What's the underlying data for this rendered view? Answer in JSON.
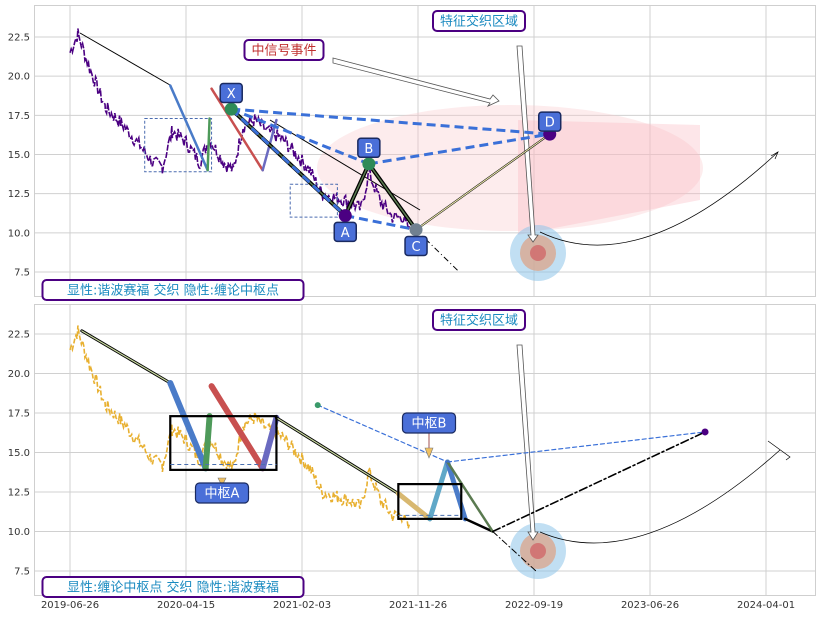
{
  "chart_data": [
    {
      "type": "line",
      "panel": "top",
      "title": "",
      "xlabel": "",
      "ylabel": "",
      "ylim": [
        6,
        24.5
      ],
      "x_ticks": [],
      "y_ticks": [
        "7.5",
        "10.0",
        "12.5",
        "15.0",
        "17.5",
        "20.0",
        "22.5"
      ],
      "y_tick_values": [
        7.5,
        10.0,
        12.5,
        15.0,
        17.5,
        20.0,
        22.5
      ],
      "grid": true,
      "price_color": "#4b0082",
      "price_anchors": [
        [
          0,
          21.5
        ],
        [
          20,
          22.7
        ],
        [
          50,
          20.5
        ],
        [
          90,
          18.0
        ],
        [
          130,
          17.0
        ],
        [
          180,
          15.5
        ],
        [
          210,
          14.5
        ],
        [
          235,
          14.2
        ],
        [
          260,
          16.5
        ],
        [
          295,
          15.8
        ],
        [
          330,
          14.5
        ],
        [
          355,
          16.0
        ],
        [
          390,
          14.5
        ],
        [
          415,
          14.0
        ],
        [
          440,
          16.8
        ],
        [
          470,
          17.2
        ],
        [
          500,
          16.5
        ],
        [
          540,
          16.0
        ],
        [
          575,
          15.0
        ],
        [
          610,
          14.0
        ],
        [
          640,
          12.5
        ],
        [
          680,
          12.2
        ],
        [
          710,
          12.0
        ],
        [
          740,
          11.5
        ],
        [
          760,
          13.8
        ],
        [
          790,
          12.0
        ],
        [
          820,
          11.0
        ],
        [
          845,
          11.0
        ],
        [
          865,
          10.0
        ]
      ],
      "zhongshu_boxes": [
        [
          190,
          13.9,
          360,
          17.3
        ],
        [
          560,
          11.0,
          680,
          13.1
        ]
      ],
      "harmonic_points": [
        {
          "label": "X",
          "x": 410,
          "y": 17.9
        },
        {
          "label": "A",
          "x": 700,
          "y": 11.1
        },
        {
          "label": "B",
          "x": 760,
          "y": 14.4
        },
        {
          "label": "C",
          "x": 880,
          "y": 10.2
        },
        {
          "label": "D",
          "x": 1220,
          "y": 16.3
        }
      ],
      "annotations": [
        "特征交织区域",
        "中信号事件",
        "显性:谐波赛福 交织 隐性:缠论中枢点"
      ]
    },
    {
      "type": "line",
      "panel": "bottom",
      "title": "",
      "xlabel": "",
      "ylabel": "",
      "ylim": [
        6,
        24.5
      ],
      "x_ticks": [
        "2019-06-26",
        "2020-04-15",
        "2021-02-03",
        "2021-11-26",
        "2022-09-19",
        "2023-06-26",
        "2024-04-01"
      ],
      "x_tick_values": [
        0,
        295,
        590,
        885,
        1180,
        1475,
        1770
      ],
      "y_ticks": [
        "7.5",
        "10.0",
        "12.5",
        "15.0",
        "17.5",
        "20.0",
        "22.5"
      ],
      "y_tick_values": [
        7.5,
        10.0,
        12.5,
        15.0,
        17.5,
        20.0,
        22.5
      ],
      "grid": true,
      "price_color": "#e8b030",
      "zhongshu_boxes": [
        [
          255,
          13.9,
          525,
          17.3
        ],
        [
          835,
          10.8,
          995,
          13.0
        ]
      ],
      "zhongshu_labels": [
        "中枢A",
        "中枢B"
      ],
      "annotations": [
        "特征交织区域",
        "显性:缠论中枢点 交织 隐性:谐波赛福"
      ]
    }
  ]
}
